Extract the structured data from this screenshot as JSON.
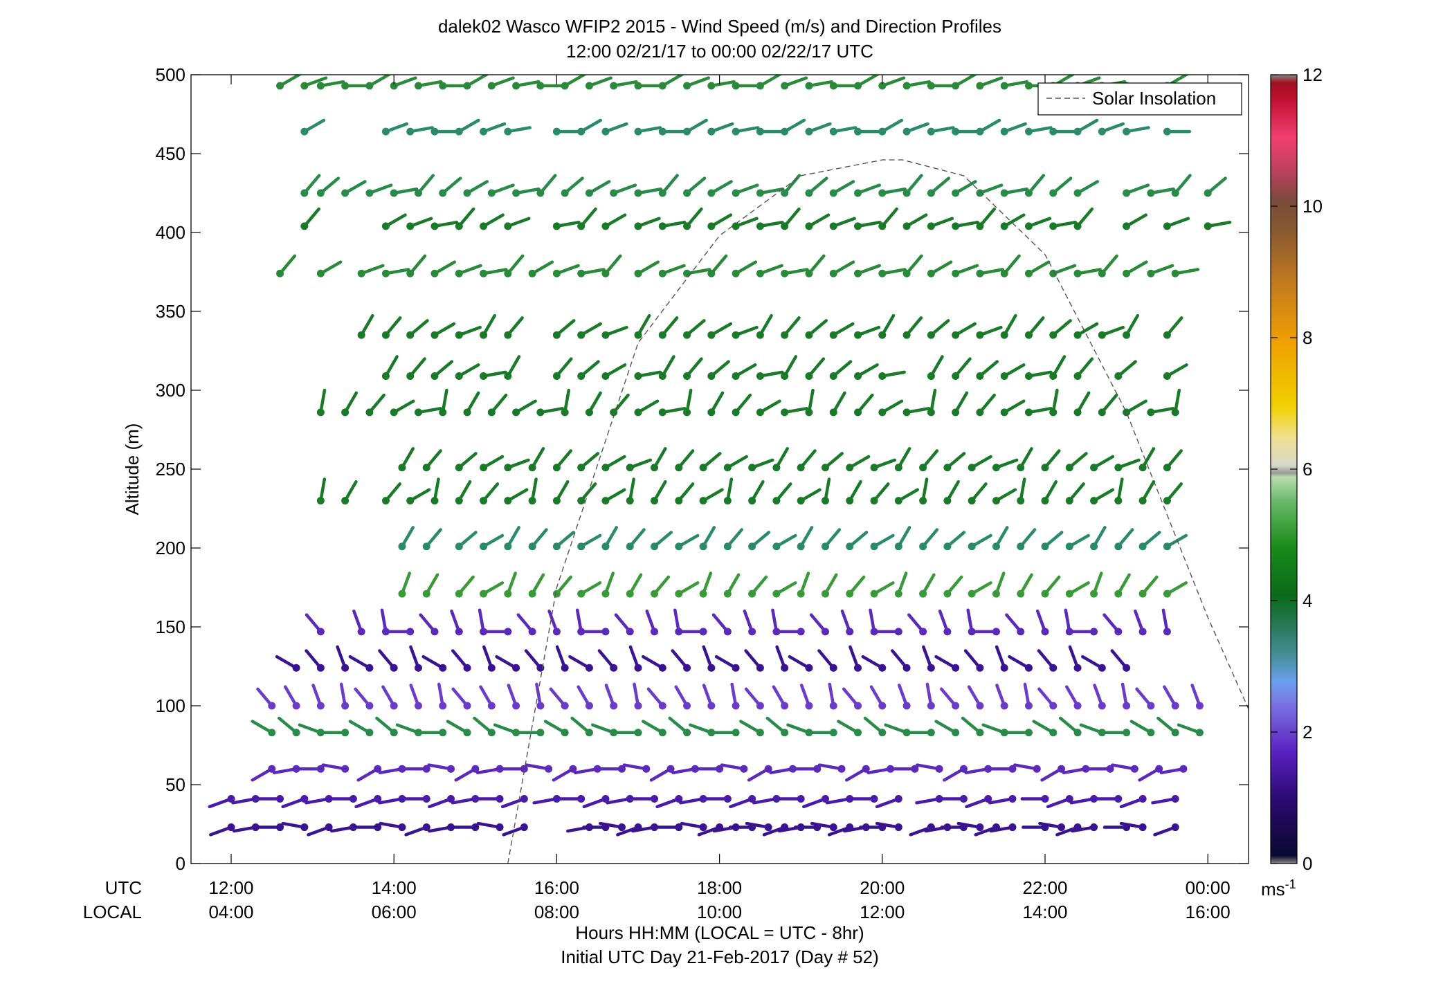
{
  "chart_data": {
    "type": "scatter",
    "title": "dalek02 Wasco WFIP2 2015 - Wind Speed (m/s) and Direction Profiles",
    "subtitle": "12:00 02/21/17 to 00:00 02/22/17  UTC",
    "ylabel": "Altitude (m)",
    "xlabel": "Hours HH:MM  (LOCAL = UTC - 8hr)",
    "xlabel2": "Initial UTC Day 21-Feb-2017 (Day # 52)",
    "row_label_utc": "UTC",
    "row_label_local": "LOCAL",
    "x_unit": "UTC hours after 12:00",
    "xlim": [
      -0.5,
      12.5
    ],
    "ylim": [
      0,
      500
    ],
    "grid": false,
    "legend": {
      "entries": [
        "Solar Insolation"
      ],
      "placement": "top-right"
    },
    "yticks": [
      0,
      50,
      100,
      150,
      200,
      250,
      300,
      350,
      400,
      450,
      500
    ],
    "xticks_utc": [
      "12:00",
      "14:00",
      "16:00",
      "18:00",
      "20:00",
      "22:00",
      "00:00"
    ],
    "xticks_local": [
      "04:00",
      "06:00",
      "08:00",
      "10:00",
      "12:00",
      "14:00",
      "16:00"
    ],
    "colorbar": {
      "label": "ms",
      "label_exponent": "-1",
      "range": [
        0,
        12
      ],
      "ticks": [
        0,
        2,
        4,
        6,
        8,
        10,
        12
      ]
    },
    "altitudes": [
      23,
      41,
      60,
      83,
      100,
      124,
      147,
      171,
      201,
      230,
      251,
      286,
      309,
      335,
      374,
      404,
      425,
      464,
      493
    ],
    "solar_insolation": {
      "x": [
        3.4,
        4.0,
        5.0,
        6.0,
        7.0,
        8.0,
        8.25,
        9.0,
        10.0,
        11.0,
        12.0,
        12.5
      ],
      "y": [
        0,
        175,
        330,
        398,
        436,
        446,
        446,
        436,
        386,
        286,
        156,
        98
      ]
    },
    "barb_rows": [
      {
        "y": 23,
        "color": "#3a1490",
        "s": 1.2,
        "dir": [
          250,
          260,
          270,
          280
        ],
        "x": [
          0.0,
          0.3,
          0.6,
          0.9,
          1.2,
          1.5,
          1.8,
          2.1,
          2.4,
          2.7,
          3.0,
          3.3,
          3.6,
          4.4,
          4.6,
          4.8,
          5.0,
          5.2,
          5.5,
          5.8,
          6.0,
          6.2,
          6.4,
          6.6,
          6.8,
          7.0,
          7.2,
          7.4,
          7.6,
          7.8,
          8.0,
          8.2,
          8.6,
          8.8,
          9.0,
          9.2,
          9.4,
          9.6,
          10.0,
          10.2,
          10.4,
          10.6,
          11.0,
          11.2,
          11.6
        ]
      },
      {
        "y": 41,
        "color": "#4a1aa8",
        "s": 1.4,
        "dir": [
          250,
          260,
          270
        ],
        "x": [
          0.0,
          0.3,
          0.6,
          0.9,
          1.2,
          1.5,
          1.8,
          2.1,
          2.4,
          2.7,
          3.0,
          3.3,
          3.6,
          4.0,
          4.3,
          4.6,
          4.9,
          5.2,
          5.5,
          5.8,
          6.1,
          6.4,
          6.7,
          7.0,
          7.3,
          7.6,
          7.9,
          8.2,
          8.7,
          9.0,
          9.3,
          9.6,
          10.0,
          10.3,
          10.6,
          10.9,
          11.2,
          11.6
        ]
      },
      {
        "y": 60,
        "color": "#5c2ab8",
        "s": 1.3,
        "dir": [
          240,
          260,
          270,
          280
        ],
        "x": [
          0.5,
          0.8,
          1.1,
          1.4,
          1.8,
          2.1,
          2.4,
          2.7,
          3.0,
          3.3,
          3.6,
          3.9,
          4.2,
          4.5,
          4.8,
          5.1,
          5.4,
          5.7,
          6.0,
          6.3,
          6.6,
          6.9,
          7.2,
          7.5,
          7.8,
          8.1,
          8.4,
          8.7,
          9.0,
          9.3,
          9.6,
          9.9,
          10.2,
          10.5,
          10.8,
          11.1,
          11.4,
          11.7
        ]
      },
      {
        "y": 83,
        "color": "#2a8a4a",
        "s": 1.3,
        "dir": [
          300,
          310,
          290,
          270
        ],
        "x": [
          0.5,
          0.8,
          1.1,
          1.4,
          1.7,
          2.0,
          2.3,
          2.6,
          2.9,
          3.2,
          3.5,
          3.8,
          4.1,
          4.4,
          4.7,
          5.0,
          5.3,
          5.6,
          5.9,
          6.2,
          6.5,
          6.8,
          7.1,
          7.4,
          7.7,
          8.0,
          8.3,
          8.6,
          8.9,
          9.2,
          9.5,
          9.8,
          10.1,
          10.4,
          10.7,
          11.0,
          11.3,
          11.6,
          11.9
        ]
      },
      {
        "y": 100,
        "color": "#6a3cc8",
        "s": 1.2,
        "dir": [
          320,
          330,
          340,
          350
        ],
        "x": [
          0.5,
          0.8,
          1.1,
          1.4,
          1.7,
          2.0,
          2.3,
          2.6,
          2.9,
          3.2,
          3.5,
          3.8,
          4.1,
          4.4,
          4.7,
          5.0,
          5.3,
          5.6,
          5.9,
          6.2,
          6.5,
          6.8,
          7.1,
          7.4,
          7.7,
          8.0,
          8.3,
          8.6,
          8.9,
          9.2,
          9.5,
          9.8,
          10.1,
          10.4,
          10.7,
          11.0,
          11.3,
          11.6,
          11.9
        ]
      },
      {
        "y": 124,
        "color": "#3a1490",
        "s": 1.3,
        "dir": [
          300,
          320,
          340
        ],
        "x": [
          0.8,
          1.1,
          1.4,
          1.7,
          2.0,
          2.3,
          2.6,
          2.9,
          3.2,
          3.5,
          3.8,
          4.1,
          4.4,
          4.7,
          5.0,
          5.3,
          5.6,
          5.9,
          6.2,
          6.5,
          6.8,
          7.1,
          7.4,
          7.7,
          8.0,
          8.3,
          8.6,
          8.9,
          9.2,
          9.5,
          9.8,
          10.1,
          10.4,
          10.7,
          11.0
        ]
      },
      {
        "y": 147,
        "color": "#5c2ab8",
        "s": 1.2,
        "dir": [
          320,
          340,
          350,
          270
        ],
        "x": [
          1.1,
          1.6,
          1.9,
          2.2,
          2.5,
          2.8,
          3.1,
          3.4,
          3.7,
          4.0,
          4.3,
          4.6,
          4.9,
          5.2,
          5.5,
          5.8,
          6.1,
          6.4,
          6.7,
          7.0,
          7.3,
          7.6,
          7.9,
          8.2,
          8.5,
          8.8,
          9.1,
          9.4,
          9.7,
          10.0,
          10.3,
          10.6,
          10.9,
          11.2,
          11.5
        ]
      },
      {
        "y": 171,
        "color": "#3a9a3a",
        "s": 1.2,
        "dir": [
          20,
          30,
          40,
          60
        ],
        "x": [
          2.1,
          2.4,
          2.8,
          3.1,
          3.4,
          3.7,
          4.0,
          4.3,
          4.6,
          4.9,
          5.2,
          5.5,
          5.8,
          6.1,
          6.4,
          6.7,
          7.0,
          7.3,
          7.6,
          7.9,
          8.2,
          8.5,
          8.8,
          9.1,
          9.4,
          9.7,
          10.0,
          10.3,
          10.6,
          10.9,
          11.2,
          11.5
        ]
      },
      {
        "y": 201,
        "color": "#2a8a6a",
        "s": 1.2,
        "dir": [
          30,
          40,
          50,
          60
        ],
        "x": [
          2.1,
          2.4,
          2.8,
          3.1,
          3.4,
          3.7,
          4.0,
          4.3,
          4.6,
          4.9,
          5.2,
          5.5,
          5.8,
          6.1,
          6.4,
          6.7,
          7.0,
          7.3,
          7.6,
          7.9,
          8.2,
          8.5,
          8.8,
          9.1,
          9.4,
          9.7,
          10.0,
          10.3,
          10.6,
          10.9,
          11.2,
          11.5
        ]
      },
      {
        "y": 230,
        "color": "#1a7a2a",
        "s": 1.2,
        "dir": [
          10,
          30,
          40,
          60
        ],
        "x": [
          1.1,
          1.4,
          1.9,
          2.2,
          2.5,
          2.8,
          3.1,
          3.4,
          3.7,
          4.0,
          4.3,
          4.6,
          4.9,
          5.2,
          5.5,
          5.8,
          6.1,
          6.4,
          6.7,
          7.0,
          7.3,
          7.6,
          7.9,
          8.2,
          8.5,
          8.8,
          9.1,
          9.4,
          9.7,
          10.0,
          10.3,
          10.6,
          10.9,
          11.2,
          11.5
        ]
      },
      {
        "y": 251,
        "color": "#1a7a2a",
        "s": 1.2,
        "dir": [
          30,
          40,
          50,
          60,
          70
        ],
        "x": [
          2.1,
          2.4,
          2.8,
          3.1,
          3.4,
          3.7,
          4.0,
          4.3,
          4.6,
          4.9,
          5.2,
          5.5,
          5.8,
          6.1,
          6.4,
          6.7,
          7.0,
          7.3,
          7.6,
          7.9,
          8.2,
          8.5,
          8.8,
          9.1,
          9.4,
          9.7,
          10.0,
          10.3,
          10.6,
          10.9,
          11.2,
          11.5
        ]
      },
      {
        "y": 286,
        "color": "#1a7a2a",
        "s": 1.3,
        "dir": [
          10,
          30,
          40,
          60,
          80
        ],
        "x": [
          1.1,
          1.4,
          1.7,
          2.0,
          2.3,
          2.6,
          2.9,
          3.2,
          3.5,
          3.8,
          4.1,
          4.4,
          4.7,
          5.0,
          5.3,
          5.6,
          5.9,
          6.2,
          6.5,
          6.8,
          7.1,
          7.4,
          7.7,
          8.0,
          8.3,
          8.6,
          8.9,
          9.2,
          9.5,
          9.8,
          10.1,
          10.4,
          10.7,
          11.0,
          11.3,
          11.6
        ]
      },
      {
        "y": 309,
        "color": "#1a7a2a",
        "s": 1.3,
        "dir": [
          30,
          40,
          50,
          60,
          80
        ],
        "x": [
          1.9,
          2.2,
          2.5,
          2.8,
          3.1,
          3.4,
          4.0,
          4.3,
          4.6,
          5.0,
          5.3,
          5.6,
          5.9,
          6.2,
          6.5,
          6.8,
          7.1,
          7.4,
          7.7,
          8.0,
          8.6,
          8.9,
          9.2,
          9.5,
          9.8,
          10.1,
          10.4,
          10.9,
          11.5
        ]
      },
      {
        "y": 335,
        "color": "#1a7a2a",
        "s": 1.3,
        "dir": [
          30,
          40,
          50,
          60,
          70
        ],
        "x": [
          1.6,
          1.9,
          2.2,
          2.5,
          2.8,
          3.1,
          3.4,
          4.0,
          4.3,
          4.6,
          5.0,
          5.3,
          5.6,
          5.9,
          6.2,
          6.5,
          6.8,
          7.1,
          7.4,
          7.7,
          8.0,
          8.3,
          8.6,
          8.9,
          9.2,
          9.5,
          9.8,
          10.1,
          10.4,
          10.7,
          11.0,
          11.5
        ]
      },
      {
        "y": 374,
        "color": "#2a8a3a",
        "s": 1.4,
        "dir": [
          40,
          60,
          70,
          80
        ],
        "x": [
          0.6,
          1.1,
          1.6,
          1.9,
          2.2,
          2.5,
          2.8,
          3.1,
          3.4,
          3.7,
          4.0,
          4.3,
          4.6,
          5.0,
          5.3,
          5.6,
          5.9,
          6.2,
          6.5,
          6.8,
          7.1,
          7.4,
          7.7,
          8.0,
          8.3,
          8.6,
          8.9,
          9.2,
          9.5,
          9.8,
          10.1,
          10.4,
          10.7,
          11.0,
          11.3,
          11.6
        ]
      },
      {
        "y": 404,
        "color": "#1a7a2a",
        "s": 1.3,
        "dir": [
          40,
          60,
          70,
          80
        ],
        "x": [
          0.9,
          1.9,
          2.2,
          2.5,
          2.8,
          3.1,
          3.4,
          4.0,
          4.3,
          4.6,
          5.0,
          5.3,
          5.6,
          5.9,
          6.2,
          6.5,
          6.8,
          7.1,
          7.4,
          7.7,
          8.0,
          8.3,
          8.6,
          8.9,
          9.2,
          9.5,
          9.8,
          10.1,
          10.4,
          11.0,
          11.5,
          12.0
        ]
      },
      {
        "y": 425,
        "color": "#2a8a4a",
        "s": 1.4,
        "dir": [
          40,
          50,
          60,
          70,
          80
        ],
        "x": [
          0.9,
          1.1,
          1.4,
          1.7,
          2.0,
          2.3,
          2.6,
          2.9,
          3.2,
          3.5,
          3.8,
          4.1,
          4.4,
          4.7,
          5.0,
          5.3,
          5.6,
          5.9,
          6.2,
          6.5,
          6.8,
          7.1,
          7.4,
          7.7,
          8.0,
          8.3,
          8.6,
          8.9,
          9.2,
          9.5,
          9.8,
          10.1,
          10.4,
          11.0,
          11.3,
          11.6,
          12.0
        ]
      },
      {
        "y": 464,
        "color": "#2a8a6a",
        "s": 1.3,
        "dir": [
          60,
          70,
          80,
          90
        ],
        "x": [
          0.9,
          1.9,
          2.2,
          2.5,
          2.8,
          3.1,
          3.4,
          4.0,
          4.3,
          4.6,
          5.0,
          5.3,
          5.6,
          5.9,
          6.2,
          6.5,
          6.8,
          7.1,
          7.4,
          7.7,
          8.0,
          8.3,
          8.6,
          8.9,
          9.2,
          9.5,
          9.8,
          10.1,
          10.4,
          10.7,
          11.0,
          11.5
        ]
      },
      {
        "y": 493,
        "color": "#2a8a3a",
        "s": 1.4,
        "dir": [
          60,
          70,
          80,
          90
        ],
        "x": [
          0.6,
          0.9,
          1.1,
          1.4,
          1.7,
          2.0,
          2.3,
          2.6,
          2.9,
          3.2,
          3.5,
          3.8,
          4.1,
          4.4,
          4.7,
          5.0,
          5.3,
          5.6,
          5.9,
          6.2,
          6.5,
          6.8,
          7.1,
          7.4,
          7.7,
          8.0,
          8.3,
          8.6,
          8.9,
          9.2,
          9.5,
          9.8,
          10.1,
          10.4,
          10.7,
          11.0,
          11.5
        ]
      }
    ]
  }
}
